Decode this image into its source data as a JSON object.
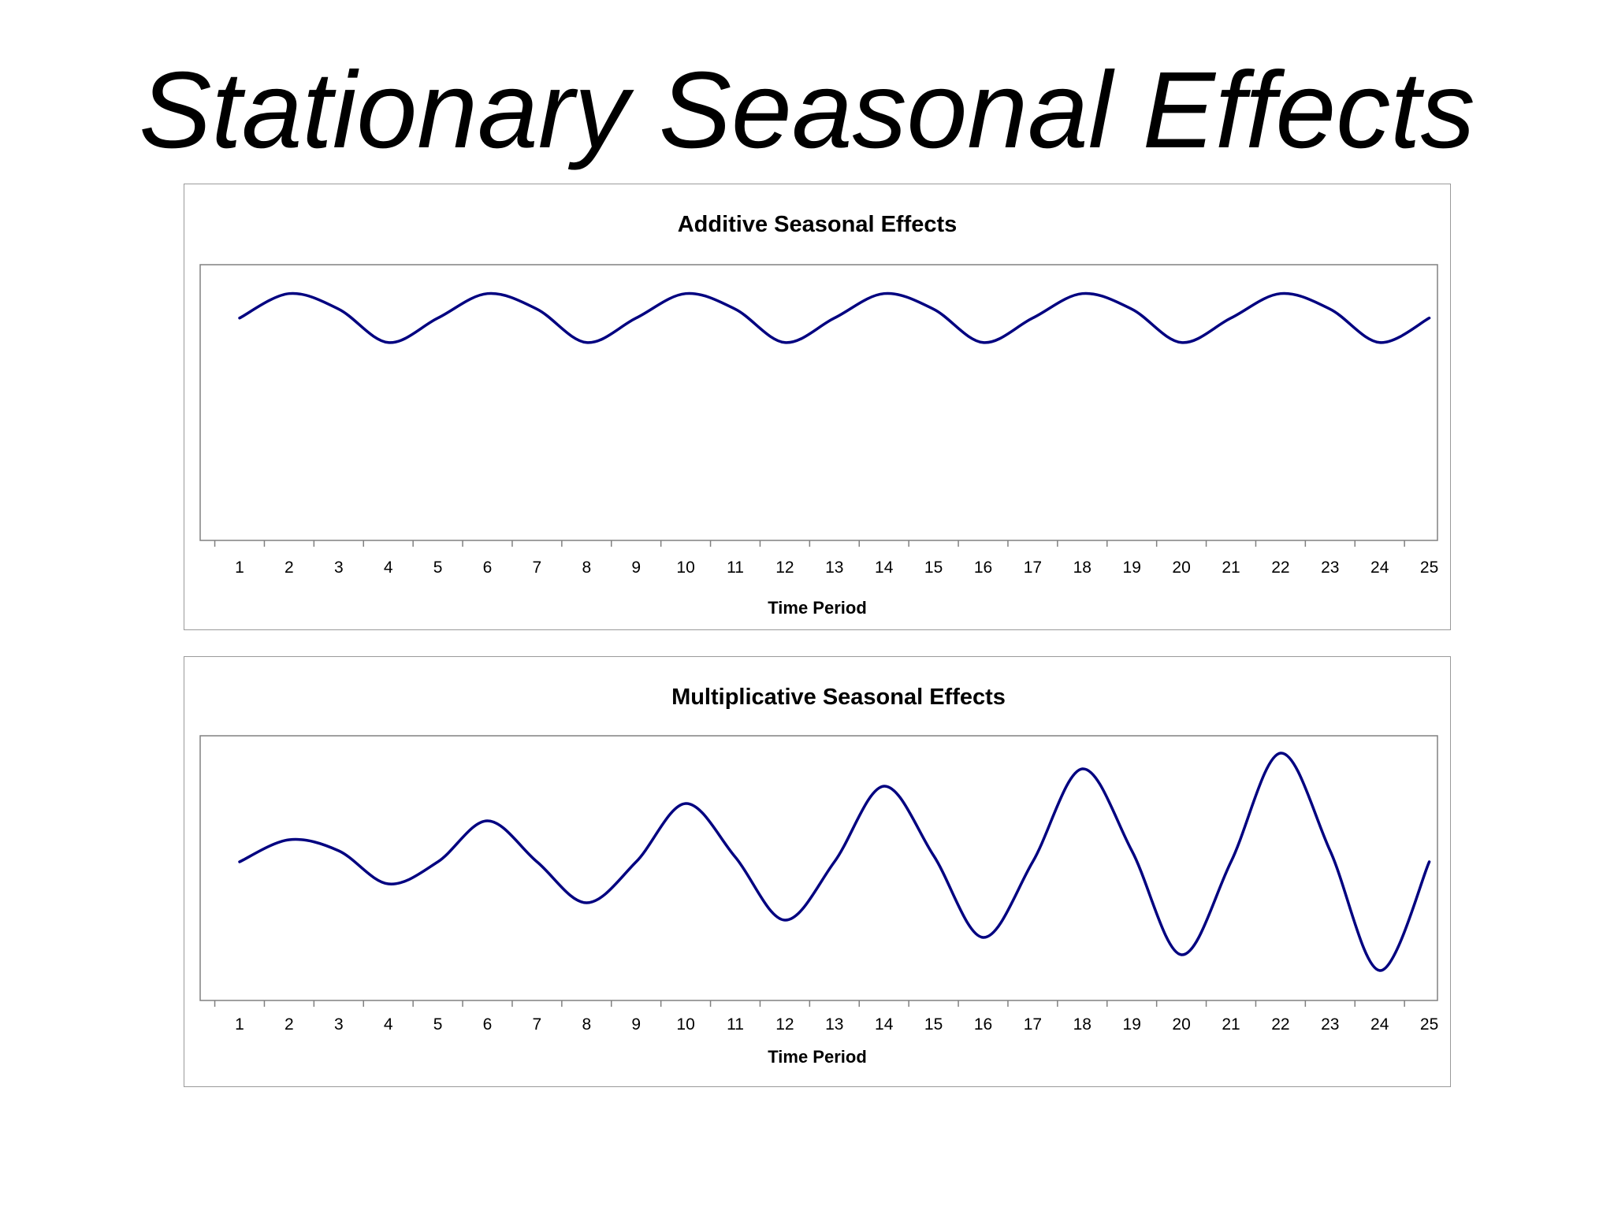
{
  "page": {
    "title": "Stationary Seasonal Effects"
  },
  "colors": {
    "series": "#000080",
    "axis": "#808080",
    "frame": "#9a9a9a",
    "text": "#000000"
  },
  "chart_data": [
    {
      "type": "line",
      "title": "Additive Seasonal Effects",
      "xlabel": "Time Period",
      "ylabel": "",
      "categories": [
        "1",
        "2",
        "3",
        "4",
        "5",
        "6",
        "7",
        "8",
        "9",
        "10",
        "11",
        "12",
        "13",
        "14",
        "15",
        "16",
        "17",
        "18",
        "19",
        "20",
        "21",
        "22",
        "23",
        "24",
        "25"
      ],
      "ylim": [
        -5,
        1.2
      ],
      "y_ticks_shown": false,
      "grid": false,
      "legend": "none",
      "series": [
        {
          "values": [
            0,
            0.55,
            0.2,
            -0.55,
            0,
            0.55,
            0.2,
            -0.55,
            0,
            0.55,
            0.2,
            -0.55,
            0,
            0.55,
            0.2,
            -0.55,
            0,
            0.55,
            0.2,
            -0.55,
            0,
            0.55,
            0.2,
            -0.55,
            0
          ]
        }
      ]
    },
    {
      "type": "line",
      "title": "Multiplicative Seasonal Effects",
      "xlabel": "Time Period",
      "ylabel": "",
      "categories": [
        "1",
        "2",
        "3",
        "4",
        "5",
        "6",
        "7",
        "8",
        "9",
        "10",
        "11",
        "12",
        "13",
        "14",
        "15",
        "16",
        "17",
        "18",
        "19",
        "20",
        "21",
        "22",
        "23",
        "24",
        "25"
      ],
      "ylim": [
        -4.4,
        4.0
      ],
      "y_ticks_shown": false,
      "grid": false,
      "legend": "none",
      "series": [
        {
          "values": [
            0,
            0.7,
            0.35,
            -0.7,
            0,
            1.3,
            0,
            -1.3,
            0,
            1.85,
            0.15,
            -1.85,
            0,
            2.4,
            0.2,
            -2.4,
            0,
            2.95,
            0.35,
            -2.95,
            0,
            3.45,
            0.35,
            -3.45,
            0
          ]
        }
      ]
    }
  ]
}
